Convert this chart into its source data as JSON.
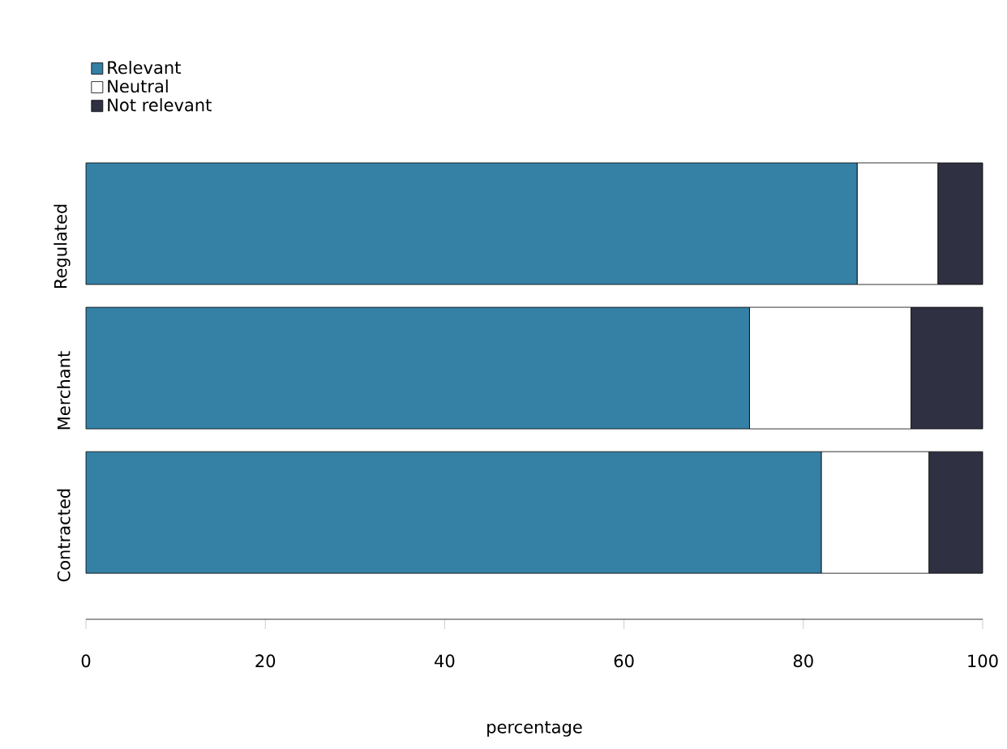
{
  "chart_data": {
    "type": "bar",
    "orientation": "horizontal",
    "stacked": true,
    "categories": [
      "Regulated",
      "Merchant",
      "Contracted"
    ],
    "series": [
      {
        "name": "Relevant",
        "color": "#3580a5",
        "values": [
          86,
          74,
          82
        ]
      },
      {
        "name": "Neutral",
        "color": "#ffffff",
        "values": [
          9,
          18,
          12
        ]
      },
      {
        "name": "Not relevant",
        "color": "#2f3142",
        "values": [
          5,
          8,
          6
        ]
      }
    ],
    "xlim": [
      0,
      100
    ],
    "xticks": [
      0,
      20,
      40,
      60,
      80,
      100
    ],
    "xlabel": "percentage",
    "legend": "top left"
  }
}
